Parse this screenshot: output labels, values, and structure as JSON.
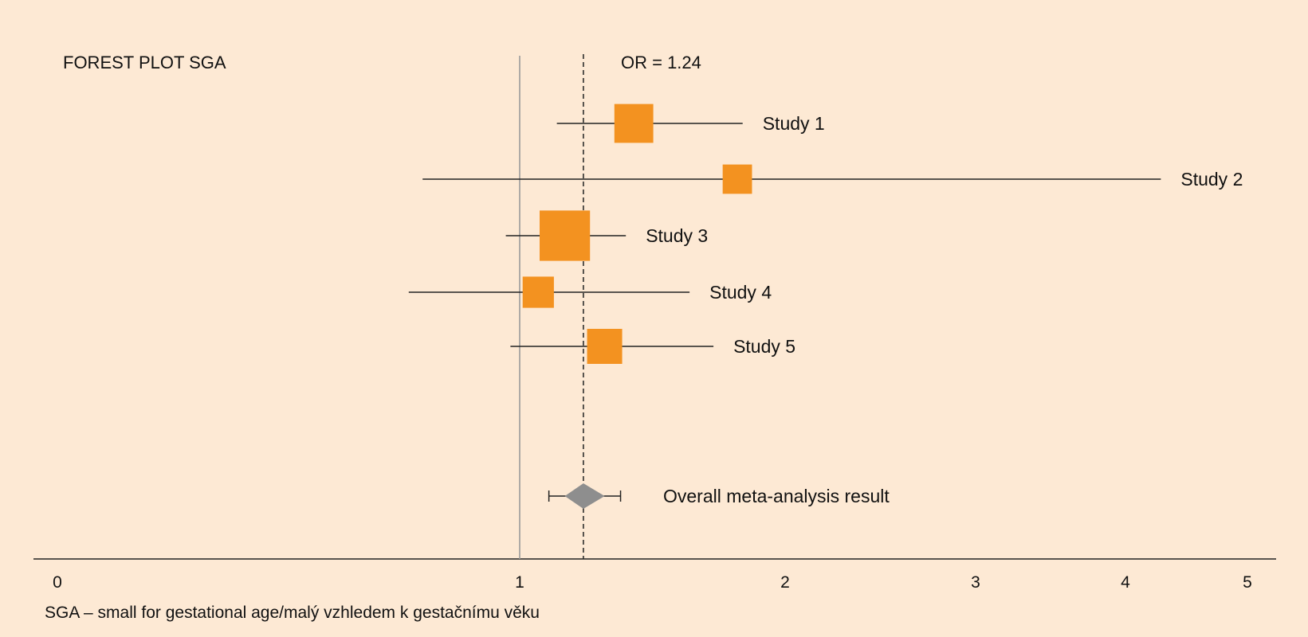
{
  "chart_data": {
    "type": "forest",
    "title": "FOREST PLOT SGA",
    "reference_line": {
      "value": 1,
      "style": "solid",
      "color": "#9a9a9a"
    },
    "overall_line": {
      "value": 1.24,
      "style": "dashed",
      "label": "OR = 1.24"
    },
    "x_ticks": [
      {
        "label": "0",
        "value": 0
      },
      {
        "label": "1",
        "value": 1
      },
      {
        "label": "2",
        "value": 2
      },
      {
        "label": "3",
        "value": 3
      },
      {
        "label": "4",
        "value": 4
      },
      {
        "label": "5",
        "value": 5
      }
    ],
    "studies": [
      {
        "name": "Study 1",
        "or": 1.43,
        "ci_low": 1.14,
        "ci_high": 1.84,
        "weight": 0.6
      },
      {
        "name": "Study 2",
        "or": 1.82,
        "ci_low": 0.79,
        "ci_high": 4.29,
        "weight": 0.35
      },
      {
        "name": "Study 3",
        "or": 1.17,
        "ci_low": 0.97,
        "ci_high": 1.4,
        "weight": 0.9
      },
      {
        "name": "Study 4",
        "or": 1.07,
        "ci_low": 0.76,
        "ci_high": 1.64,
        "weight": 0.4
      },
      {
        "name": "Study 5",
        "or": 1.32,
        "ci_low": 0.98,
        "ci_high": 1.73,
        "weight": 0.5
      }
    ],
    "overall": {
      "label": "Overall meta-analysis result",
      "or": 1.24,
      "ci_low": 1.11,
      "ci_high": 1.38,
      "diamond_low": 1.17,
      "diamond_high": 1.32
    },
    "footnote": "SGA – small for gestational age/malý vzhledem k gestačnímu věku",
    "colors": {
      "background": "#fde9d4",
      "box": "#f39220",
      "diamond": "#8e8e8e",
      "line": "#222222"
    }
  }
}
